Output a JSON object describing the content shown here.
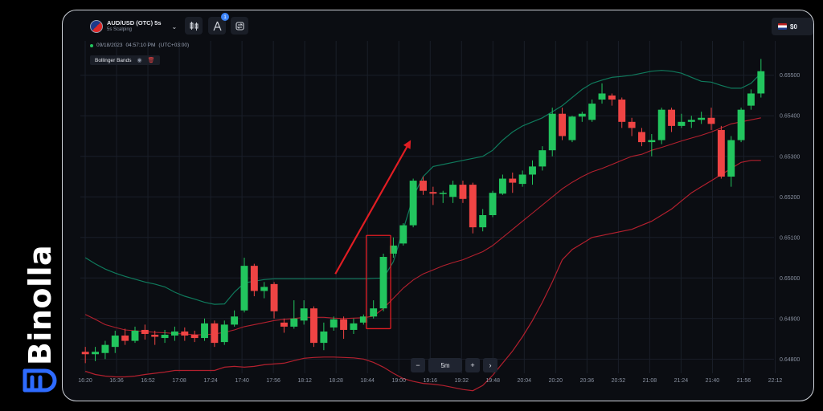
{
  "brand": {
    "name": "Binolla"
  },
  "header": {
    "pair": "AUD/USD (OTC) 5s",
    "strategy": "5s Scalping",
    "notification_count": "1",
    "balance": "$0"
  },
  "session": {
    "date": "09/18/2023",
    "time": "04:57:10 PM",
    "timezone": "(UTC+03:00)"
  },
  "indicator": {
    "name": "Bollinger Bands"
  },
  "zoom": {
    "minus": "−",
    "value": "5m",
    "plus": "+",
    "next": "›"
  },
  "colors": {
    "bull": "#22c55e",
    "bear": "#ef4444",
    "upper_band": "#0f7a5c",
    "lower_band": "#b3202e",
    "arrow": "#e11d23",
    "highlight": "#e11d23"
  },
  "chart_data": {
    "type": "candlestick",
    "x_ticks": [
      "16:20",
      "16:36",
      "16:52",
      "17:08",
      "17:24",
      "17:40",
      "17:56",
      "18:12",
      "18:28",
      "18:44",
      "19:00",
      "19:16",
      "19:32",
      "19:48",
      "20:04",
      "20:20",
      "20:36",
      "20:52",
      "21:08",
      "21:24",
      "21:40",
      "21:56",
      "22:12"
    ],
    "y_ticks": [
      "0.65500",
      "0.65400",
      "0.65300",
      "0.65200",
      "0.65100",
      "0.65000",
      "0.64900",
      "0.64800"
    ],
    "ylim": [
      0.64765,
      0.65545
    ],
    "candles": [
      [
        0.64818,
        0.64812,
        0.6483,
        0.6479
      ],
      [
        0.64812,
        0.64818,
        0.6483,
        0.64795
      ],
      [
        0.64815,
        0.64835,
        0.64845,
        0.648
      ],
      [
        0.6483,
        0.64858,
        0.6487,
        0.64815
      ],
      [
        0.64858,
        0.64845,
        0.64875,
        0.64835
      ],
      [
        0.64845,
        0.6487,
        0.6488,
        0.6484
      ],
      [
        0.64872,
        0.64862,
        0.64885,
        0.64848
      ],
      [
        0.6486,
        0.64855,
        0.6487,
        0.64835
      ],
      [
        0.64852,
        0.6486,
        0.64872,
        0.6484
      ],
      [
        0.64858,
        0.64868,
        0.6488,
        0.64845
      ],
      [
        0.64868,
        0.64858,
        0.64878,
        0.64845
      ],
      [
        0.6486,
        0.64852,
        0.6487,
        0.64842
      ],
      [
        0.64852,
        0.64888,
        0.649,
        0.64845
      ],
      [
        0.64888,
        0.6484,
        0.64895,
        0.6483
      ],
      [
        0.64842,
        0.64885,
        0.64895,
        0.64835
      ],
      [
        0.64885,
        0.64905,
        0.6492,
        0.6488
      ],
      [
        0.6492,
        0.6503,
        0.6505,
        0.64915
      ],
      [
        0.6503,
        0.64968,
        0.65035,
        0.64955
      ],
      [
        0.64968,
        0.64978,
        0.6499,
        0.6495
      ],
      [
        0.64985,
        0.64918,
        0.6499,
        0.649
      ],
      [
        0.6489,
        0.6488,
        0.649,
        0.64865
      ],
      [
        0.6488,
        0.649,
        0.64945,
        0.64875
      ],
      [
        0.64895,
        0.64925,
        0.64945,
        0.64885
      ],
      [
        0.64925,
        0.6484,
        0.6493,
        0.6483
      ],
      [
        0.6484,
        0.64868,
        0.6489,
        0.64822
      ],
      [
        0.64878,
        0.64898,
        0.64905,
        0.6487
      ],
      [
        0.64898,
        0.64872,
        0.64905,
        0.6485
      ],
      [
        0.64872,
        0.64888,
        0.649,
        0.64862
      ],
      [
        0.6489,
        0.64905,
        0.6491,
        0.64885
      ],
      [
        0.64905,
        0.64925,
        0.64945,
        0.649
      ],
      [
        0.64925,
        0.65052,
        0.6506,
        0.64918
      ],
      [
        0.6506,
        0.6508,
        0.651,
        0.6505
      ],
      [
        0.65085,
        0.6513,
        0.65135,
        0.6508
      ],
      [
        0.6513,
        0.6524,
        0.65245,
        0.65125
      ],
      [
        0.6524,
        0.65215,
        0.6525,
        0.65205
      ],
      [
        0.65212,
        0.65208,
        0.65225,
        0.6518
      ],
      [
        0.65208,
        0.6521,
        0.65215,
        0.65185
      ],
      [
        0.652,
        0.6523,
        0.6524,
        0.65185
      ],
      [
        0.6523,
        0.65195,
        0.6524,
        0.65185
      ],
      [
        0.6523,
        0.65125,
        0.65235,
        0.6511
      ],
      [
        0.65125,
        0.65155,
        0.6517,
        0.65115
      ],
      [
        0.65155,
        0.6521,
        0.65215,
        0.6515
      ],
      [
        0.65208,
        0.65245,
        0.65255,
        0.65205
      ],
      [
        0.65245,
        0.65235,
        0.6526,
        0.6521
      ],
      [
        0.65232,
        0.65255,
        0.65265,
        0.65225
      ],
      [
        0.65255,
        0.65275,
        0.6529,
        0.6523
      ],
      [
        0.65275,
        0.65315,
        0.65325,
        0.65265
      ],
      [
        0.65315,
        0.65405,
        0.6542,
        0.653
      ],
      [
        0.65405,
        0.6535,
        0.6542,
        0.6534
      ],
      [
        0.6534,
        0.65398,
        0.654,
        0.65335
      ],
      [
        0.65398,
        0.65405,
        0.6541,
        0.65385
      ],
      [
        0.6539,
        0.6543,
        0.6544,
        0.65385
      ],
      [
        0.6544,
        0.65455,
        0.6548,
        0.6543
      ],
      [
        0.6545,
        0.6544,
        0.65455,
        0.65425
      ],
      [
        0.6544,
        0.65385,
        0.65445,
        0.6537
      ],
      [
        0.65385,
        0.6537,
        0.65395,
        0.6535
      ],
      [
        0.6536,
        0.65335,
        0.6537,
        0.65325
      ],
      [
        0.65335,
        0.6534,
        0.65355,
        0.653
      ],
      [
        0.6534,
        0.65415,
        0.6542,
        0.6533
      ],
      [
        0.65415,
        0.65375,
        0.6542,
        0.6536
      ],
      [
        0.65375,
        0.65385,
        0.65405,
        0.6537
      ],
      [
        0.65385,
        0.6539,
        0.654,
        0.6537
      ],
      [
        0.6539,
        0.65395,
        0.6541,
        0.6538
      ],
      [
        0.65395,
        0.6538,
        0.6542,
        0.65365
      ],
      [
        0.65365,
        0.6525,
        0.65375,
        0.65245
      ],
      [
        0.6525,
        0.6534,
        0.6535,
        0.65225
      ],
      [
        0.6534,
        0.65415,
        0.6542,
        0.65335
      ],
      [
        0.65425,
        0.65455,
        0.65465,
        0.65415
      ],
      [
        0.65455,
        0.6551,
        0.6554,
        0.65445
      ]
    ],
    "upper_band": [
      0.6505,
      0.65035,
      0.65022,
      0.65012,
      0.65004,
      0.64997,
      0.6499,
      0.64985,
      0.64978,
      0.64965,
      0.64955,
      0.64948,
      0.6494,
      0.64935,
      0.64936,
      0.64965,
      0.64988,
      0.64992,
      0.64996,
      0.64998,
      0.64998,
      0.64998,
      0.64998,
      0.64998,
      0.64998,
      0.64998,
      0.64998,
      0.64998,
      0.64998,
      0.64999,
      0.65,
      0.6504,
      0.6512,
      0.652,
      0.6525,
      0.65275,
      0.6528,
      0.65285,
      0.6529,
      0.65295,
      0.653,
      0.65315,
      0.6534,
      0.6536,
      0.65375,
      0.65385,
      0.65395,
      0.6541,
      0.65425,
      0.65445,
      0.65465,
      0.6548,
      0.65488,
      0.65495,
      0.65497,
      0.655,
      0.65505,
      0.6551,
      0.65512,
      0.6551,
      0.65505,
      0.65495,
      0.65485,
      0.65483,
      0.65475,
      0.65468,
      0.65468,
      0.6548,
      0.65505
    ],
    "middle_band": [
      0.6491,
      0.64898,
      0.64885,
      0.64878,
      0.64872,
      0.6487,
      0.64868,
      0.64866,
      0.64865,
      0.64863,
      0.64862,
      0.6486,
      0.6486,
      0.64862,
      0.64866,
      0.64872,
      0.6488,
      0.64885,
      0.6489,
      0.64895,
      0.64898,
      0.649,
      0.64903,
      0.64903,
      0.64903,
      0.64901,
      0.649,
      0.64901,
      0.64902,
      0.64906,
      0.64925,
      0.6495,
      0.64975,
      0.64995,
      0.6501,
      0.6502,
      0.6503,
      0.65038,
      0.65045,
      0.65055,
      0.65065,
      0.6508,
      0.651,
      0.6512,
      0.6514,
      0.6516,
      0.6518,
      0.652,
      0.6522,
      0.65236,
      0.6525,
      0.65262,
      0.6527,
      0.6528,
      0.6529,
      0.653,
      0.65305,
      0.65315,
      0.65322,
      0.6533,
      0.65338,
      0.65345,
      0.65352,
      0.6536,
      0.6537,
      0.6538,
      0.65385,
      0.6539,
      0.65395
    ],
    "lower_band": [
      0.6477,
      0.64762,
      0.64758,
      0.64756,
      0.64756,
      0.64758,
      0.64762,
      0.64765,
      0.64768,
      0.64772,
      0.64772,
      0.64772,
      0.64772,
      0.64772,
      0.6478,
      0.64782,
      0.6478,
      0.64782,
      0.64786,
      0.64788,
      0.6479,
      0.64796,
      0.64802,
      0.64804,
      0.64805,
      0.64805,
      0.64804,
      0.64803,
      0.648,
      0.64792,
      0.6478,
      0.64765,
      0.64752,
      0.64745,
      0.6474,
      0.64738,
      0.64735,
      0.6473,
      0.64725,
      0.64722,
      0.64735,
      0.6476,
      0.6479,
      0.6482,
      0.64855,
      0.64895,
      0.6494,
      0.6499,
      0.65045,
      0.6507,
      0.65085,
      0.651,
      0.65105,
      0.6511,
      0.65115,
      0.6512,
      0.6513,
      0.6514,
      0.65155,
      0.6517,
      0.6519,
      0.6521,
      0.65225,
      0.6524,
      0.65255,
      0.6527,
      0.65285,
      0.6529,
      0.6529
    ]
  }
}
